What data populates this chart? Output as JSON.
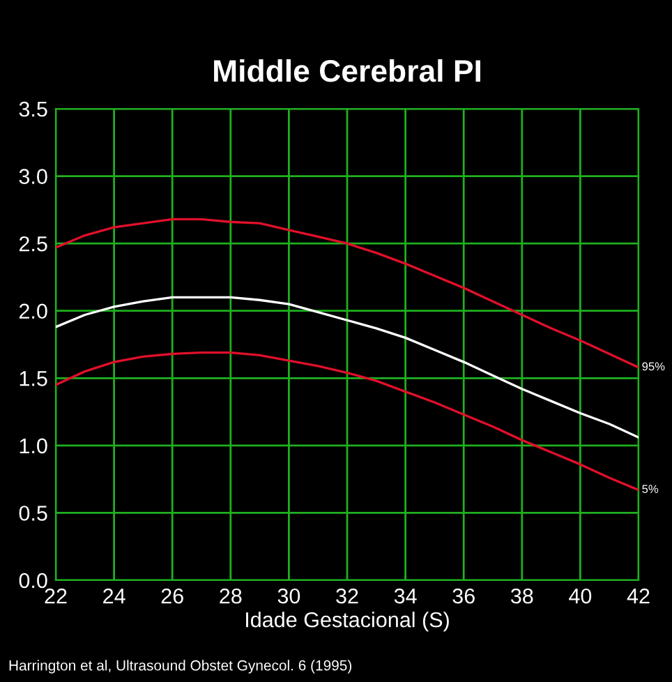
{
  "chart_data": {
    "type": "line",
    "title": "Middle Cerebral PI",
    "xlabel": "Idade Gestacional (S)",
    "x": [
      22,
      23,
      24,
      25,
      26,
      27,
      28,
      29,
      30,
      31,
      32,
      33,
      34,
      35,
      36,
      37,
      38,
      39,
      40,
      41,
      42
    ],
    "series": [
      {
        "name": "95%",
        "color": "#e0102a",
        "values": [
          2.47,
          2.56,
          2.62,
          2.65,
          2.68,
          2.68,
          2.66,
          2.65,
          2.6,
          2.55,
          2.5,
          2.43,
          2.35,
          2.26,
          2.17,
          2.07,
          1.97,
          1.87,
          1.78,
          1.68,
          1.58
        ]
      },
      {
        "color": "#ffffff",
        "values": [
          1.88,
          1.97,
          2.03,
          2.07,
          2.1,
          2.1,
          2.1,
          2.08,
          2.05,
          1.99,
          1.93,
          1.87,
          1.8,
          1.71,
          1.62,
          1.52,
          1.42,
          1.33,
          1.24,
          1.16,
          1.06
        ]
      },
      {
        "name": "5%",
        "color": "#e0102a",
        "values": [
          1.45,
          1.55,
          1.62,
          1.66,
          1.68,
          1.69,
          1.69,
          1.67,
          1.63,
          1.59,
          1.54,
          1.48,
          1.4,
          1.32,
          1.23,
          1.14,
          1.04,
          0.95,
          0.86,
          0.76,
          0.67
        ]
      }
    ],
    "xlim": [
      22,
      42
    ],
    "ylim": [
      0,
      3.5
    ],
    "xticks": [
      22,
      24,
      26,
      28,
      30,
      32,
      34,
      36,
      38,
      40,
      42
    ],
    "yticks": [
      {
        "value": 0,
        "label": "0.0"
      },
      {
        "value": 0.5,
        "label": "0.5"
      },
      {
        "value": 1,
        "label": "1.0"
      },
      {
        "value": 1.5,
        "label": "1.5"
      },
      {
        "value": 2,
        "label": "2.0"
      },
      {
        "value": 2.5,
        "label": "2.5"
      },
      {
        "value": 3,
        "label": "3.0"
      },
      {
        "value": 3.5,
        "label": "3.5"
      }
    ],
    "grid": true,
    "legend": false,
    "marker": "none",
    "line_style": "solid",
    "annotations": [
      "Harrington et al, Ultrasound Obstet Gynecol. 6 (1995)"
    ]
  }
}
